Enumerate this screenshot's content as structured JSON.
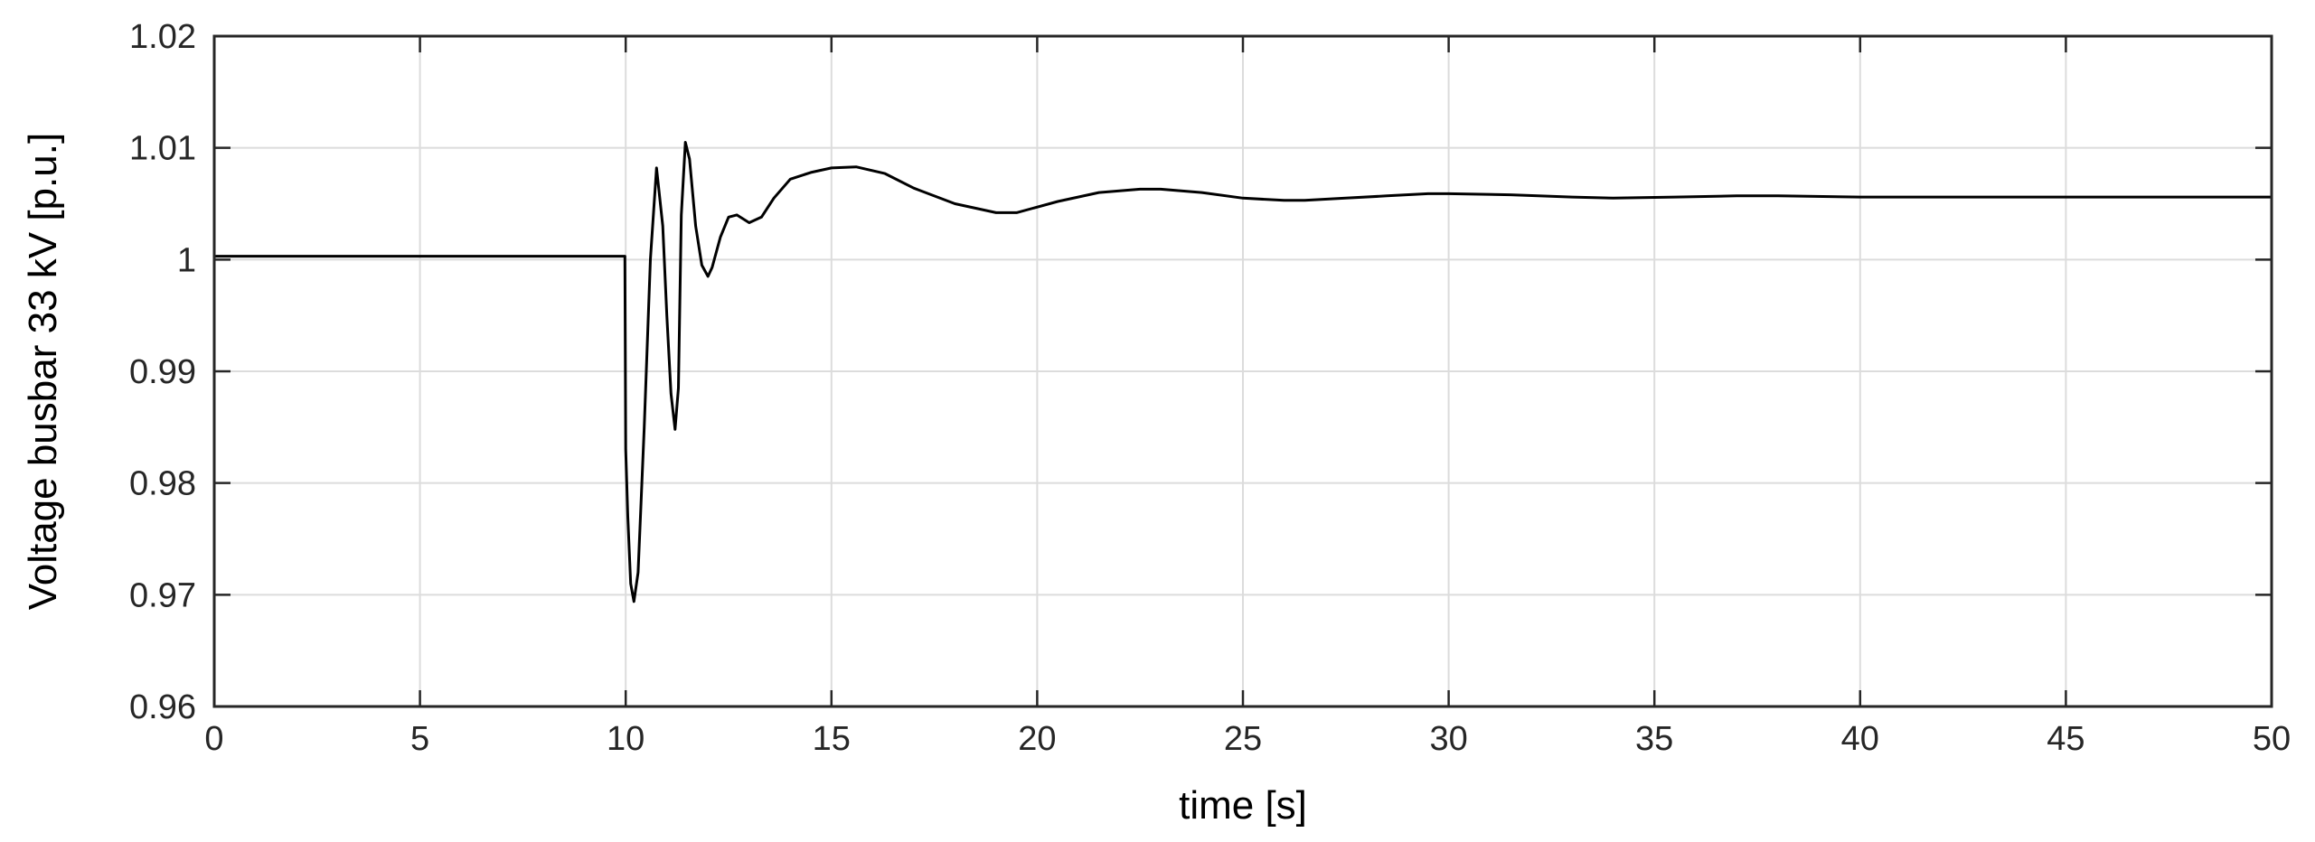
{
  "chart_data": {
    "type": "line",
    "title": "",
    "xlabel": "time [s]",
    "ylabel": "Voltage busbar 33 kV [p.u.]",
    "xlim": [
      0,
      50
    ],
    "ylim": [
      0.96,
      1.02
    ],
    "xticks": [
      "0",
      "5",
      "10",
      "15",
      "20",
      "25",
      "30",
      "35",
      "40",
      "45",
      "50"
    ],
    "yticks": [
      "0.96",
      "0.97",
      "0.98",
      "0.99",
      "1",
      "1.01",
      "1.02"
    ],
    "grid": true,
    "legend": "none",
    "series": [
      {
        "color": "#000000",
        "x": [
          0,
          9.98,
          10.0,
          10.05,
          10.12,
          10.2,
          10.3,
          10.45,
          10.6,
          10.75,
          10.9,
          11.0,
          11.1,
          11.2,
          11.28,
          11.35,
          11.45,
          11.55,
          11.7,
          11.85,
          12.0,
          12.1,
          12.3,
          12.5,
          12.7,
          13.0,
          13.3,
          13.6,
          14.0,
          14.5,
          15.0,
          15.6,
          16.3,
          17.0,
          18.0,
          19.0,
          19.5,
          20.5,
          21.5,
          22.5,
          23.0,
          24.0,
          25.0,
          26.0,
          26.5,
          27.5,
          28.5,
          29.5,
          30.0,
          31.5,
          33.0,
          34.0,
          35.5,
          37.0,
          38.0,
          40.0,
          42.0,
          45.0,
          48.0,
          50.0
        ],
        "y": [
          1.0003,
          1.0003,
          0.983,
          0.977,
          0.971,
          0.9694,
          0.972,
          0.985,
          1.0,
          1.0082,
          1.003,
          0.995,
          0.988,
          0.9848,
          0.9885,
          1.004,
          1.0105,
          1.009,
          1.003,
          0.9995,
          0.9985,
          0.9993,
          1.002,
          1.0038,
          1.004,
          1.0033,
          1.0038,
          1.0055,
          1.0072,
          1.0078,
          1.0082,
          1.0083,
          1.0077,
          1.0064,
          1.005,
          1.0042,
          1.0042,
          1.0052,
          1.006,
          1.0063,
          1.0063,
          1.006,
          1.0055,
          1.0053,
          1.0053,
          1.0055,
          1.0057,
          1.0059,
          1.0059,
          1.0058,
          1.0056,
          1.0055,
          1.0056,
          1.0057,
          1.0057,
          1.0056,
          1.0056,
          1.0056,
          1.0056,
          1.0056
        ]
      }
    ]
  }
}
